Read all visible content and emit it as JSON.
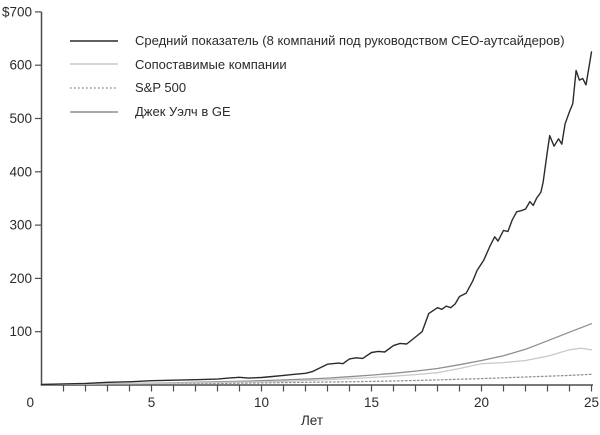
{
  "chart_data": {
    "type": "line",
    "title": "",
    "xlabel": "Лет",
    "ylabel": "",
    "xlim": [
      0,
      25
    ],
    "ylim": [
      0,
      700
    ],
    "grid": false,
    "legend_position": "top-left",
    "x_minor_tick_step": 1,
    "x_ticks": [
      {
        "v": 0,
        "label": "0"
      },
      {
        "v": 5,
        "label": "5"
      },
      {
        "v": 10,
        "label": "10"
      },
      {
        "v": 15,
        "label": "15"
      },
      {
        "v": 20,
        "label": "20"
      },
      {
        "v": 25,
        "label": "25"
      }
    ],
    "y_ticks": [
      {
        "v": 100,
        "label": "100"
      },
      {
        "v": 200,
        "label": "200"
      },
      {
        "v": 300,
        "label": "300"
      },
      {
        "v": 400,
        "label": "400"
      },
      {
        "v": 500,
        "label": "500"
      },
      {
        "v": 600,
        "label": "600"
      },
      {
        "v": 700,
        "label": "$700"
      }
    ],
    "axis_color": "#4d4d4d",
    "text_color": "#2b2b2b",
    "series": [
      {
        "name": "Средний показатель (8 компаний под руководством CEO-аутсайдеров)",
        "color": "#2b2b2b",
        "dash": "solid",
        "width": 1.4,
        "x": [
          0,
          1,
          2,
          3,
          4,
          5,
          6,
          7,
          8,
          8.5,
          9,
          9.4,
          10,
          10.5,
          11,
          11.5,
          12,
          12.3,
          12.6,
          13,
          13.5,
          13.7,
          14,
          14.3,
          14.6,
          15,
          15.3,
          15.6,
          16,
          16.3,
          16.6,
          17,
          17.3,
          17.6,
          18,
          18.2,
          18.4,
          18.6,
          18.8,
          19,
          19.3,
          19.6,
          19.8,
          20.1,
          20.4,
          20.6,
          20.75,
          21,
          21.2,
          21.4,
          21.6,
          21.8,
          22,
          22.2,
          22.35,
          22.5,
          22.7,
          22.8,
          23,
          23.1,
          23.3,
          23.5,
          23.65,
          23.8,
          24,
          24.15,
          24.3,
          24.45,
          24.6,
          24.75,
          24.9,
          25
        ],
        "y": [
          1,
          2,
          3,
          5,
          6,
          8,
          9,
          10,
          11,
          13,
          14.5,
          13,
          14,
          16,
          18,
          20,
          22,
          25,
          31,
          39,
          41,
          40,
          49,
          51,
          50,
          61,
          63,
          62,
          74,
          78,
          77,
          90,
          100,
          134,
          145,
          142,
          148,
          145,
          152,
          166,
          172,
          195,
          215,
          234,
          262,
          278,
          270,
          290,
          288,
          310,
          325,
          327,
          330,
          344,
          337,
          350,
          362,
          380,
          440,
          468,
          448,
          462,
          452,
          490,
          513,
          528,
          590,
          572,
          575,
          563,
          600,
          625
        ]
      },
      {
        "name": "Сопоставимые компании",
        "color": "#c7cbce",
        "dash": "solid",
        "width": 1.3,
        "x": [
          0,
          1,
          2,
          3,
          4,
          5,
          6,
          7,
          8,
          9,
          10,
          11,
          12,
          13,
          14,
          15,
          16,
          17,
          18,
          19,
          20,
          21,
          22,
          23,
          24,
          24.5,
          25
        ],
        "y": [
          1,
          1.3,
          1.7,
          2,
          2.5,
          3,
          3.5,
          4,
          4.7,
          5.5,
          6,
          7,
          8.5,
          10,
          12,
          14,
          16.5,
          19.5,
          23,
          31,
          40,
          42,
          46,
          54,
          66,
          69,
          66
        ]
      },
      {
        "name": "S&P 500",
        "color": "#8f9396",
        "dash": "dotted",
        "width": 1.3,
        "x": [
          0,
          2,
          4,
          6,
          8,
          10,
          12,
          14,
          16,
          18,
          20,
          22,
          24,
          25
        ],
        "y": [
          1,
          1.5,
          2,
          2.5,
          3,
          4,
          5,
          6,
          7.5,
          9.5,
          12,
          15,
          18,
          20
        ]
      },
      {
        "name": "Джек Уэлч в GE",
        "color": "#8b8f92",
        "dash": "solid",
        "width": 1.3,
        "x": [
          0,
          1,
          2,
          3,
          4,
          5,
          6,
          7,
          8,
          9,
          10,
          11,
          12,
          13,
          14,
          15,
          16,
          17,
          18,
          19,
          20,
          21,
          22,
          23,
          24,
          25
        ],
        "y": [
          1,
          1.3,
          1.8,
          2.2,
          2.8,
          3.5,
          4.2,
          5,
          6,
          7,
          8,
          9.5,
          11,
          13,
          15.5,
          18.5,
          22,
          26,
          31,
          38,
          46,
          55,
          67,
          83,
          99,
          115
        ]
      }
    ]
  }
}
